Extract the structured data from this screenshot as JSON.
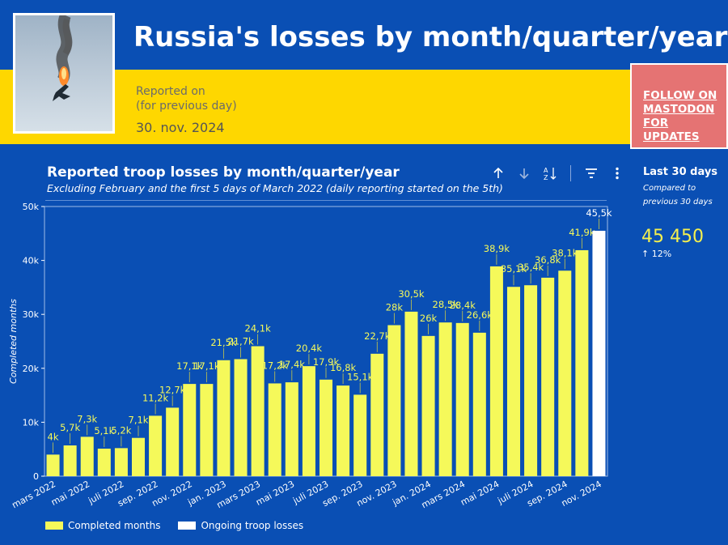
{
  "header": {
    "title": "Russia's losses by month/quarter/year",
    "reported_label_line1": "Reported on",
    "reported_label_line2": "(for previous day)",
    "reported_date": "30. nov. 2024",
    "follow_button": "FOLLOW ON MASTODON FOR UPDATES"
  },
  "side_panel": {
    "label": "Last 30 days",
    "compared_line1": "Compared to",
    "compared_line2": "previous 30 days",
    "value": "45 450",
    "delta": "12%"
  },
  "colors": {
    "background": "#0a4fb4",
    "band": "#fed700",
    "completed": "#f5f95a",
    "ongoing": "#ffffff",
    "follow": "#e57373"
  },
  "chart_data": {
    "type": "bar",
    "title": "Reported troop losses by month/quarter/year",
    "subtitle": "Excluding February and the first 5 days of March 2022 (daily reporting started on the 5th)",
    "ylabel": "Completed months",
    "ylim": [
      0,
      50000
    ],
    "yticks": [
      0,
      10000,
      20000,
      30000,
      40000,
      50000
    ],
    "ytick_labels": [
      "0",
      "10k",
      "20k",
      "30k",
      "40k",
      "50k"
    ],
    "xtick_labels": [
      "mars 2022",
      "mai 2022",
      "juli 2022",
      "sep. 2022",
      "nov. 2022",
      "jan. 2023",
      "mars 2023",
      "mai 2023",
      "juli 2023",
      "sep. 2023",
      "nov. 2023",
      "jan. 2024",
      "mars 2024",
      "mai 2024",
      "juli 2024",
      "sep. 2024",
      "nov. 2024"
    ],
    "series": [
      {
        "name": "Completed months",
        "values": [
          4000,
          5700,
          7300,
          5100,
          5200,
          7100,
          11200,
          12700,
          17100,
          17100,
          21500,
          21700,
          24100,
          17200,
          17400,
          20400,
          17900,
          16800,
          15100,
          22700,
          28000,
          30500,
          26000,
          28500,
          28400,
          26600,
          38900,
          35100,
          35400,
          36800,
          38100,
          41900
        ],
        "labels": [
          "4k",
          "5,7k",
          "7,3k",
          "5,1k",
          "5,2k",
          "7,1k",
          "11,2k",
          "12,7k",
          "17,1k",
          "17,1k",
          "21,5k",
          "21,7k",
          "24,1k",
          "17,2k",
          "17,4k",
          "20,4k",
          "17,9k",
          "16,8k",
          "15,1k",
          "22,7k",
          "28k",
          "30,5k",
          "26k",
          "28,5k",
          "28,4k",
          "26,6k",
          "38,9k",
          "35,1k",
          "35,4k",
          "36,8k",
          "38,1k",
          "41,9k"
        ]
      },
      {
        "name": "Ongoing troop losses",
        "values": [
          45500
        ],
        "labels": [
          "45,5k"
        ]
      }
    ],
    "legend": "bottom-left"
  }
}
